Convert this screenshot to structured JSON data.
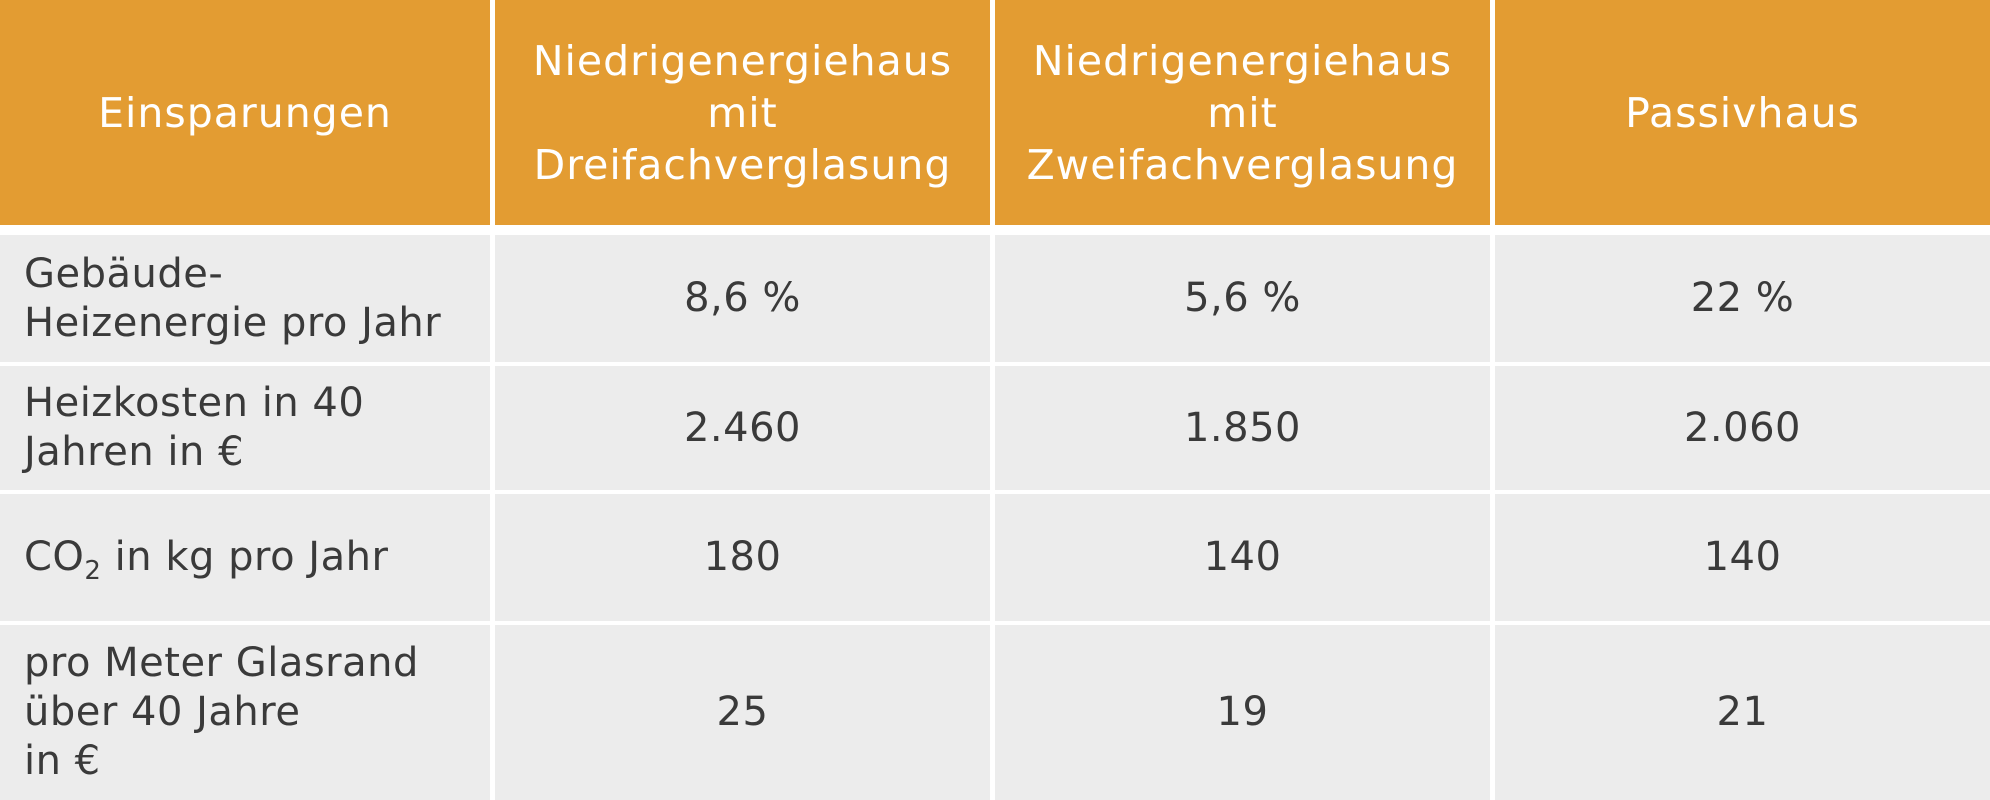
{
  "table": {
    "headers": [
      [
        "Einsparungen"
      ],
      [
        "Niedrigenergiehaus",
        "mit",
        "Dreifachverglasung"
      ],
      [
        "Niedrigenergiehaus",
        "mit",
        "Zweifachverglasung"
      ],
      [
        "Passivhaus"
      ]
    ],
    "rows": [
      {
        "label_lines": [
          "Gebäude-",
          "Heizenergie pro Jahr"
        ],
        "values": [
          "8,6 %",
          "5,6 %",
          "22 %"
        ]
      },
      {
        "label_lines": [
          "Heizkosten in 40",
          "Jahren in €"
        ],
        "values": [
          "2.460",
          "1.850",
          "2.060"
        ]
      },
      {
        "label_main": "CO",
        "label_sub": "2",
        "label_rest": " in kg pro Jahr",
        "values": [
          "180",
          "140",
          "140"
        ]
      },
      {
        "label_lines": [
          "pro Meter Glasrand",
          "über 40 Jahre",
          "in €"
        ],
        "values": [
          "25",
          "19",
          "21"
        ]
      }
    ]
  },
  "colors": {
    "header_bg": "#e39c32",
    "header_text": "#ffffff",
    "cell_bg": "#ececec",
    "cell_text": "#3a3a3a"
  }
}
